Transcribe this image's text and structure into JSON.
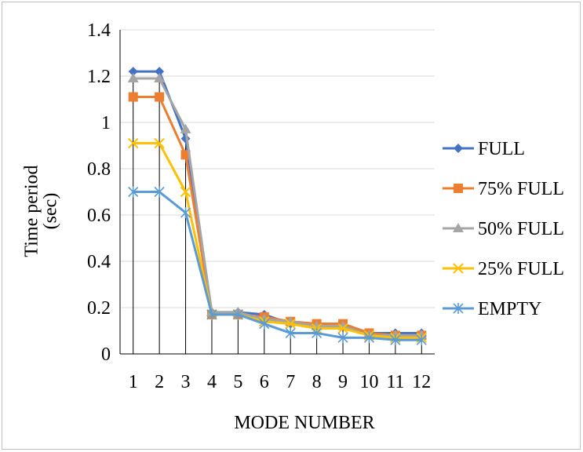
{
  "chart_data": {
    "type": "line",
    "title": "",
    "xlabel": "MODE NUMBER",
    "ylabel": "Time period (sec)",
    "ylim": [
      0,
      1.4
    ],
    "yticks": [
      "0",
      "0.2",
      "0.4",
      "0.6",
      "0.8",
      "1",
      "1.2",
      "1.4"
    ],
    "categories": [
      "1",
      "2",
      "3",
      "4",
      "5",
      "6",
      "7",
      "8",
      "9",
      "10",
      "11",
      "12"
    ],
    "grid": "horizontal",
    "drop_lines": true,
    "legend_position": "right",
    "series": [
      {
        "name": "FULL",
        "color": "#4472c4",
        "marker": "diamond",
        "values": [
          1.22,
          1.22,
          0.93,
          0.18,
          0.18,
          0.17,
          0.13,
          0.13,
          0.13,
          0.09,
          0.09,
          0.09
        ]
      },
      {
        "name": "75% FULL",
        "color": "#ed7d31",
        "marker": "square",
        "values": [
          1.11,
          1.11,
          0.86,
          0.17,
          0.17,
          0.16,
          0.14,
          0.13,
          0.13,
          0.09,
          0.08,
          0.08
        ]
      },
      {
        "name": "50% FULL",
        "color": "#a5a5a5",
        "marker": "triangle",
        "values": [
          1.19,
          1.19,
          0.97,
          0.18,
          0.18,
          0.15,
          0.14,
          0.12,
          0.12,
          0.08,
          0.08,
          0.08
        ]
      },
      {
        "name": "25% FULL",
        "color": "#ffc000",
        "marker": "x",
        "values": [
          0.91,
          0.91,
          0.7,
          0.17,
          0.17,
          0.14,
          0.13,
          0.11,
          0.11,
          0.08,
          0.07,
          0.07
        ]
      },
      {
        "name": "EMPTY",
        "color": "#5b9bd5",
        "marker": "star",
        "values": [
          0.7,
          0.7,
          0.61,
          0.17,
          0.17,
          0.13,
          0.09,
          0.09,
          0.07,
          0.07,
          0.06,
          0.06
        ]
      }
    ]
  }
}
